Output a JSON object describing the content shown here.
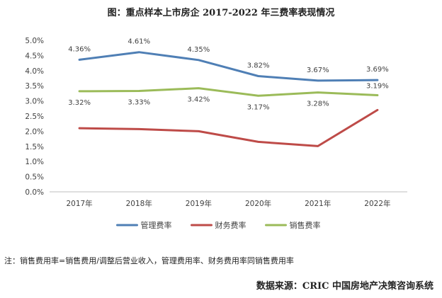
{
  "chart_data": {
    "type": "line",
    "title": "图：重点样本上市房企 2017-2022 年三费率表现情况",
    "categories": [
      "2017年",
      "2018年",
      "2019年",
      "2020年",
      "2021年",
      "2022年"
    ],
    "ylim": [
      0,
      5
    ],
    "yticks": [
      "0.0%",
      "0.5%",
      "1.0%",
      "1.5%",
      "2.0%",
      "2.5%",
      "3.0%",
      "3.5%",
      "4.0%",
      "4.5%",
      "5.0%"
    ],
    "series": [
      {
        "name": "管理费率",
        "color": "#4F7FB5",
        "values": [
          4.36,
          4.61,
          4.35,
          3.82,
          3.67,
          3.69
        ],
        "labels": [
          "4.36%",
          "4.61%",
          "4.35%",
          "3.82%",
          "3.67%",
          "3.69%"
        ],
        "show_labels": true
      },
      {
        "name": "财务费率",
        "color": "#BE4B48",
        "values": [
          2.1,
          2.07,
          2.0,
          1.65,
          1.51,
          2.7
        ],
        "labels": [],
        "show_labels": false
      },
      {
        "name": "销售费率",
        "color": "#9BBB59",
        "values": [
          3.32,
          3.33,
          3.42,
          3.17,
          3.28,
          3.19
        ],
        "labels": [
          "3.32%",
          "3.33%",
          "3.42%",
          "3.17%",
          "3.28%",
          "3.19%"
        ],
        "show_labels": true
      }
    ],
    "grid": false,
    "legend_position": "bottom"
  },
  "note": "注：销售费用率=销售费用/调整后营业收入，管理费用率、财务费用率同销售费用率",
  "source": "数据来源：CRIC 中国房地产决策咨询系统"
}
